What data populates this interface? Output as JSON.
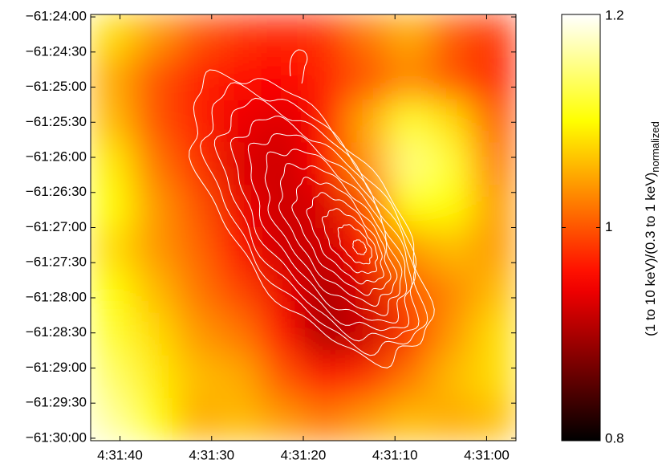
{
  "chart_data": {
    "type": "heatmap",
    "xticks": [
      {
        "value": 16300,
        "label": "4:31:40"
      },
      {
        "value": 16290,
        "label": "4:31:30"
      },
      {
        "value": 16280,
        "label": "4:31:20"
      },
      {
        "value": 16270,
        "label": "4:31:10"
      },
      {
        "value": 16260,
        "label": "4:31:00"
      }
    ],
    "xlim": [
      16303.2,
      16256.8
    ],
    "yticks": [
      {
        "value": -221040,
        "label": "−61:24:00"
      },
      {
        "value": -221070,
        "label": "−61:24:30"
      },
      {
        "value": -221100,
        "label": "−61:25:00"
      },
      {
        "value": -221130,
        "label": "−61:25:30"
      },
      {
        "value": -221160,
        "label": "−61:26:00"
      },
      {
        "value": -221190,
        "label": "−61:26:30"
      },
      {
        "value": -221220,
        "label": "−61:27:00"
      },
      {
        "value": -221250,
        "label": "−61:27:30"
      },
      {
        "value": -221280,
        "label": "−61:28:00"
      },
      {
        "value": -221310,
        "label": "−61:28:30"
      },
      {
        "value": -221340,
        "label": "−61:29:00"
      },
      {
        "value": -221370,
        "label": "−61:29:30"
      },
      {
        "value": -221400,
        "label": "−61:30:00"
      }
    ],
    "ylim": [
      -221402.1,
      -221037.9
    ],
    "values": [
      [
        1.08,
        1.04,
        1.0,
        0.98,
        0.97,
        0.98,
        1.02,
        1.05,
        1.0,
        0.98
      ],
      [
        1.05,
        1.0,
        0.97,
        0.96,
        0.95,
        0.97,
        1.0,
        1.03,
        1.0,
        0.97
      ],
      [
        1.06,
        1.0,
        0.97,
        0.94,
        0.93,
        0.96,
        1.05,
        1.12,
        1.08,
        1.0
      ],
      [
        1.09,
        1.02,
        0.98,
        0.93,
        0.92,
        0.95,
        1.04,
        1.15,
        1.12,
        1.02
      ],
      [
        1.1,
        1.04,
        1.0,
        0.94,
        0.92,
        0.93,
        0.99,
        1.1,
        1.1,
        1.04
      ],
      [
        1.08,
        1.04,
        1.01,
        0.96,
        0.92,
        0.92,
        0.96,
        1.04,
        1.06,
        1.04
      ],
      [
        1.1,
        1.06,
        1.02,
        0.99,
        0.94,
        0.9,
        0.93,
        1.0,
        1.03,
        1.06
      ],
      [
        1.12,
        1.08,
        1.04,
        1.02,
        0.96,
        0.9,
        0.92,
        0.98,
        1.04,
        1.08
      ],
      [
        1.14,
        1.09,
        1.06,
        1.05,
        1.0,
        0.96,
        0.98,
        1.02,
        1.06,
        1.08
      ],
      [
        1.16,
        1.1,
        1.05,
        1.06,
        1.04,
        1.02,
        1.04,
        1.06,
        1.05,
        1.06
      ]
    ],
    "colormap": "hot",
    "clim": [
      0.8,
      1.2
    ],
    "colorbar_ticks": [
      0.8,
      1,
      1.2
    ],
    "colorbar_label": "(1 to 10 keV)/(0.3 to 1 keV)",
    "colorbar_label_subscript": "normalized"
  }
}
